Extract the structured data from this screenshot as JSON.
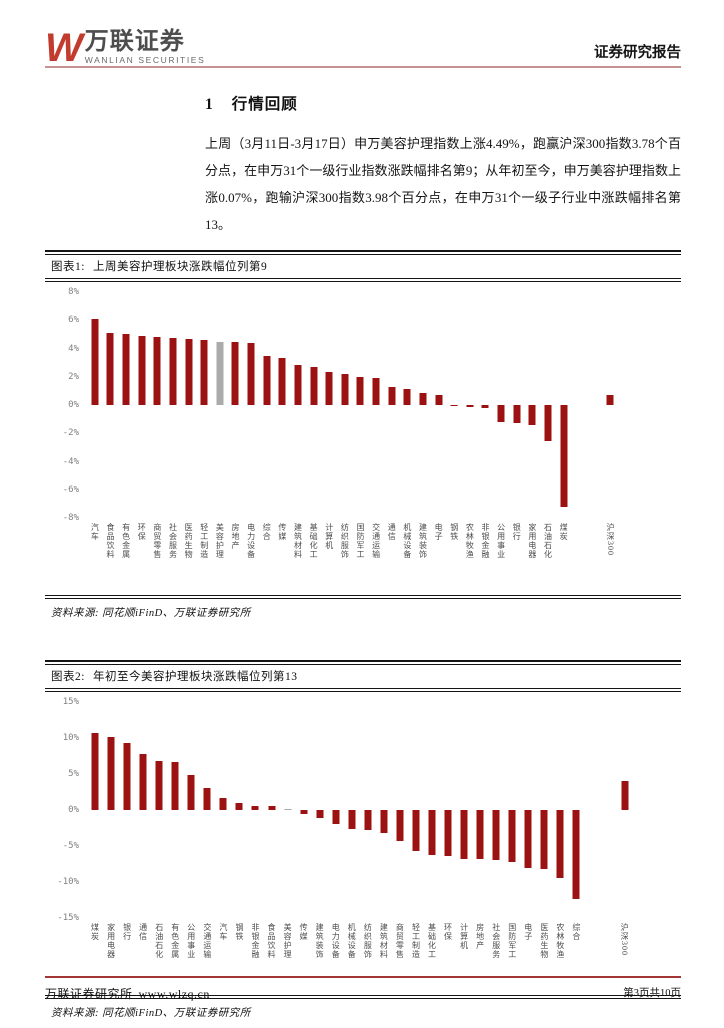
{
  "header": {
    "logo_mark": "W",
    "logo_cn": "万联证券",
    "logo_en": "WANLIAN SECURITIES",
    "report_type": "证券研究报告"
  },
  "section": {
    "number": "1",
    "title": "行情回顾",
    "paragraph": "上周（3月11日-3月17日）申万美容护理指数上涨4.49%，跑赢沪深300指数3.78个百分点，在申万31个一级行业指数涨跌幅排名第9；从年初至今，申万美容护理指数上涨0.07%，跑输沪深300指数3.98个百分点，在申万31个一级子行业中涨跌幅排名第13。"
  },
  "figures": [
    {
      "label": "图表1:",
      "title": "上周美容护理板块涨跌幅位列第9",
      "source": "资料来源: 同花顺iFinD、万联证券研究所"
    },
    {
      "label": "图表2:",
      "title": "年初至今美容护理板块涨跌幅位列第13",
      "source": "资料来源: 同花顺iFinD、万联证券研究所"
    }
  ],
  "footer": {
    "org": "万联证券研究所",
    "url": "www.wlzq.cn",
    "page_info": "第3页共10页"
  },
  "chart_data": [
    {
      "type": "bar",
      "title": "上周美容护理板块涨跌幅位列第9",
      "categories": [
        "汽车",
        "食品饮料",
        "有色金属",
        "环保",
        "商贸零售",
        "社会服务",
        "医药生物",
        "轻工制造",
        "美容护理",
        "房地产",
        "电力设备",
        "综合",
        "传媒",
        "建筑材料",
        "基础化工",
        "计算机",
        "纺织服饰",
        "国防军工",
        "交通运输",
        "通信",
        "机械设备",
        "建筑装饰",
        "电子",
        "钢铁",
        "农林牧渔",
        "非银金融",
        "公用事业",
        "银行",
        "家用电器",
        "石油石化",
        "煤炭",
        "沪深300"
      ],
      "values": [
        6.1,
        5.1,
        5.05,
        4.85,
        4.8,
        4.75,
        4.65,
        4.6,
        4.49,
        4.45,
        4.4,
        3.5,
        3.3,
        2.8,
        2.7,
        2.35,
        2.2,
        1.95,
        1.9,
        1.3,
        1.15,
        0.85,
        0.7,
        -0.1,
        -0.15,
        -0.2,
        -1.2,
        -1.3,
        -1.4,
        -2.55,
        -7.2,
        0.71
      ],
      "ylim": [
        -8,
        8
      ],
      "ytick_step": 2,
      "ytick_labels": [
        "8%",
        "6%",
        "4%",
        "2%",
        "0%",
        "-2%",
        "-4%",
        "-6%",
        "-8%"
      ],
      "highlight_category": "美容护理",
      "highlight_index": 8,
      "bar_color": "#9C1212",
      "highlight_color": "#ABABAB",
      "gap_before_last": 2,
      "trailing_slots": 4,
      "grid": false,
      "legend": false
    },
    {
      "type": "bar",
      "title": "年初至今美容护理板块涨跌幅位列第13",
      "categories": [
        "煤炭",
        "家用电器",
        "银行",
        "通信",
        "石油石化",
        "有色金属",
        "公用事业",
        "交通运输",
        "汽车",
        "钢铁",
        "非银金融",
        "食品饮料",
        "美容护理",
        "传媒",
        "建筑装饰",
        "电力设备",
        "机械设备",
        "纺织服饰",
        "建筑材料",
        "商贸零售",
        "轻工制造",
        "基础化工",
        "环保",
        "计算机",
        "房地产",
        "社会服务",
        "国防军工",
        "电子",
        "医药生物",
        "农林牧渔",
        "综合",
        "沪深300"
      ],
      "values": [
        10.7,
        10.1,
        9.3,
        7.8,
        6.8,
        6.7,
        4.9,
        3.0,
        1.6,
        1.0,
        0.6,
        0.5,
        0.07,
        -0.6,
        -1.1,
        -2.0,
        -2.6,
        -2.8,
        -3.2,
        -4.3,
        -5.7,
        -6.2,
        -6.4,
        -6.8,
        -6.8,
        -7.0,
        -7.2,
        -8.0,
        -8.2,
        -9.5,
        -12.3,
        4.05
      ],
      "ylim": [
        -15,
        15
      ],
      "ytick_step": 5,
      "ytick_labels": [
        "15%",
        "10%",
        "5%",
        "0%",
        "-5%",
        "-10%",
        "-15%"
      ],
      "highlight_category": "美容护理",
      "highlight_index": 12,
      "bar_color": "#9C1212",
      "highlight_color": "#ABABAB",
      "gap_before_last": 2,
      "trailing_slots": 3,
      "grid": false,
      "legend": false
    }
  ]
}
